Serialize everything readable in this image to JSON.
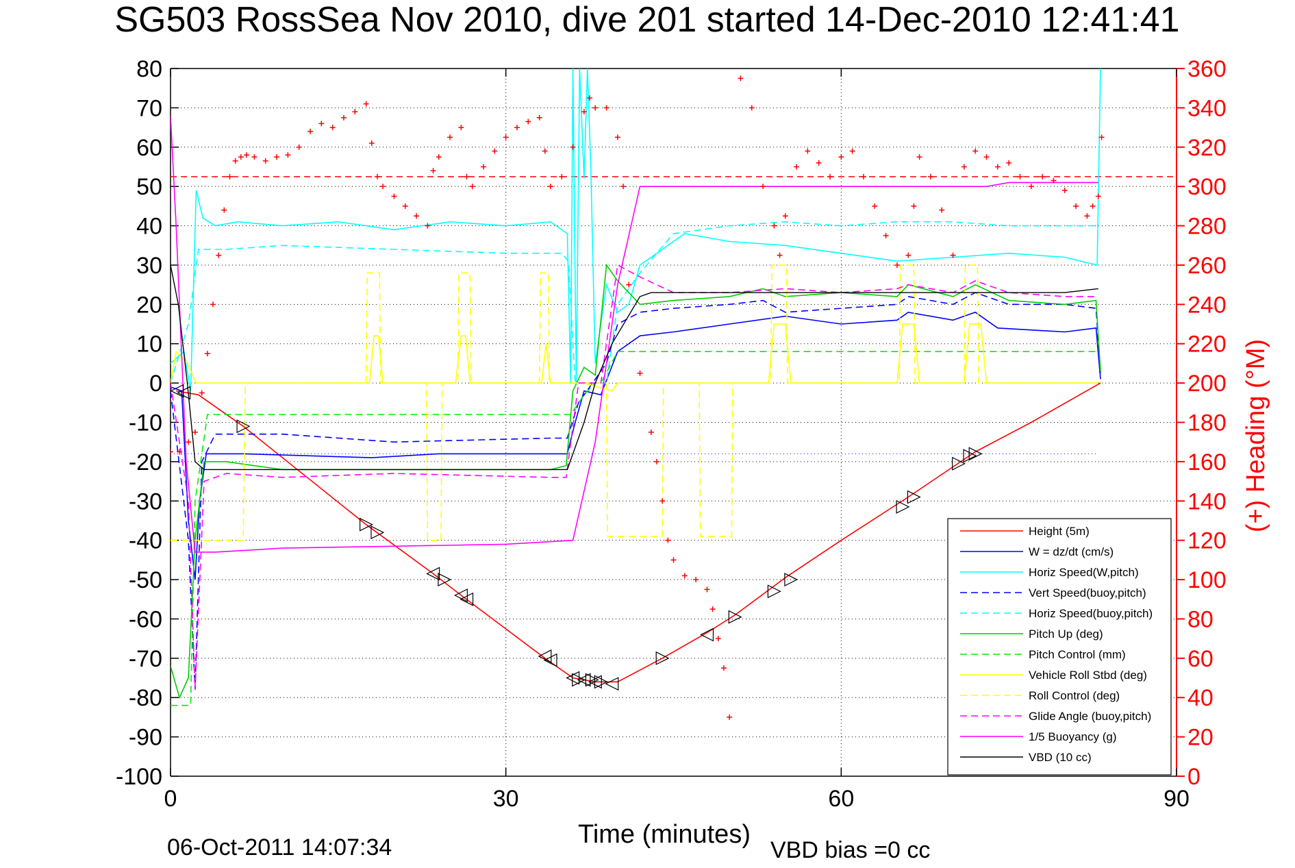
{
  "chart_data": {
    "type": "line",
    "title": "SG503 RossSea Nov 2010, dive 201 started 14-Dec-2010 12:41:41",
    "xlabel": "Time (minutes)",
    "ylabel": "",
    "y2label": "(+) Heading (°M)",
    "footer_left": "06-Oct-2011 14:07:34",
    "footer_right": "VBD bias =0 cc",
    "xlim": [
      0,
      90
    ],
    "ylim": [
      -100,
      80
    ],
    "y2lim": [
      0,
      360
    ],
    "x_ticks": [
      0,
      30,
      60,
      90
    ],
    "y_ticks": [
      80,
      70,
      60,
      50,
      40,
      30,
      20,
      10,
      0,
      -10,
      -20,
      -30,
      -40,
      -50,
      -60,
      -70,
      -80,
      -90,
      -100
    ],
    "y2_ticks": [
      360,
      340,
      320,
      300,
      280,
      260,
      240,
      220,
      200,
      180,
      160,
      140,
      120,
      100,
      80,
      60,
      40,
      20,
      0
    ],
    "grid": true,
    "legend_position": "bottom-right",
    "axis_colors": {
      "left": "#000000",
      "right": "#ff0000"
    },
    "series": [
      {
        "name": "Height (5m)",
        "color": "#ff0000",
        "dash": "solid",
        "x": [
          0.5,
          2.5,
          6.5,
          17.5,
          23.5,
          26,
          33.5,
          36,
          38,
          40,
          44,
          48,
          50.5,
          55,
          60,
          66,
          72,
          77,
          83.2
        ],
        "y": [
          -2,
          -3,
          -11,
          -36,
          -48.5,
          -54,
          -70,
          -75,
          -76,
          -76,
          -70,
          -63.5,
          -59,
          -49.5,
          -40,
          -29,
          -17.5,
          -10,
          0
        ]
      },
      {
        "name": "W = dz/dt (cm/s)",
        "color": "#0000ff",
        "dash": "solid",
        "x": [
          0,
          1,
          1.6,
          2.2,
          2.6,
          3.2,
          6.5,
          18,
          24,
          34,
          35.5,
          36.2,
          37,
          38.5,
          40,
          42,
          45,
          50,
          55,
          60,
          65,
          66,
          70,
          72,
          74,
          80,
          82.8,
          83.2
        ],
        "y": [
          -1,
          -2,
          -35,
          -50,
          -30,
          -18,
          -18,
          -19,
          -18,
          -18,
          -18,
          -10,
          -2,
          -3,
          8,
          12,
          13,
          15,
          17,
          15,
          16,
          18,
          16,
          18,
          14,
          13,
          14,
          1
        ]
      },
      {
        "name": "Horiz Speed(W,pitch)",
        "color": "#00ffff",
        "dash": "solid",
        "x": [
          0,
          1.2,
          1.8,
          2.3,
          2.9,
          4,
          6,
          10,
          15,
          20,
          25,
          30,
          34,
          35.5,
          35.8,
          36,
          36.3,
          36.6,
          37,
          37.3,
          37.6,
          38,
          39,
          40,
          41,
          42,
          44,
          46,
          50,
          55,
          60,
          65,
          70,
          75,
          80,
          82.9,
          83.2
        ],
        "y": [
          5,
          8,
          -2,
          49,
          42,
          40,
          41,
          40,
          41,
          39,
          41,
          40,
          41,
          38,
          0,
          80,
          0,
          80,
          52,
          80,
          55,
          5,
          25,
          18,
          20,
          30,
          34,
          38,
          36,
          35,
          33,
          31,
          32,
          33,
          32,
          30,
          80
        ]
      },
      {
        "name": "Vert Speed(buoy,pitch)",
        "color": "#0000ff",
        "dash": "dashed",
        "x": [
          0,
          1.6,
          2.2,
          2.8,
          4,
          10,
          20,
          34,
          35.5,
          36.5,
          39,
          40,
          42,
          45,
          50,
          53,
          55,
          60,
          65,
          66,
          70,
          72,
          75,
          80,
          82.8,
          83.2
        ],
        "y": [
          -2,
          -40,
          -78,
          -20,
          -13,
          -13,
          -15,
          -14,
          -14,
          -5,
          5,
          15,
          18,
          19,
          20,
          21,
          18,
          19,
          20,
          22,
          20,
          23,
          20,
          20,
          19,
          2
        ]
      },
      {
        "name": "Horiz Speed(buoy,pitch)",
        "color": "#00ffff",
        "dash": "dashed",
        "x": [
          0,
          1.6,
          2.5,
          3.3,
          5,
          10,
          20,
          30,
          35,
          35.6,
          36.2,
          39,
          40,
          42,
          45,
          50,
          55,
          60,
          65,
          70,
          75,
          80,
          83
        ],
        "y": [
          0,
          15,
          34,
          34,
          34,
          35,
          34,
          33,
          33,
          31,
          0,
          0,
          20,
          28,
          38,
          40,
          41,
          40,
          41,
          41,
          40,
          40,
          40
        ]
      },
      {
        "name": "Pitch Up (deg)",
        "color": "#00cc00",
        "dash": "solid",
        "x": [
          0,
          0.8,
          1.6,
          2.2,
          3,
          5,
          10,
          20,
          34,
          35.4,
          36,
          37,
          38,
          39,
          40,
          41,
          42,
          45,
          50,
          53,
          55,
          60,
          65,
          66,
          70,
          72,
          75,
          80,
          82.8,
          83.2
        ],
        "y": [
          -72,
          -80,
          -75,
          -40,
          -20,
          -20,
          -22,
          -22,
          -22,
          -21,
          -2,
          4,
          2,
          30,
          26,
          23,
          20,
          21,
          22,
          24,
          22,
          23,
          22,
          25,
          22,
          25,
          21,
          20,
          21,
          3
        ]
      },
      {
        "name": "Pitch Control (mm)",
        "color": "#00ee00",
        "dash": "dashed",
        "x": [
          0,
          0.8,
          1.8,
          2.2,
          3.3,
          6.5,
          34.8,
          35.8,
          37,
          38,
          38.5,
          40,
          43,
          60,
          83
        ],
        "y": [
          -82,
          -82,
          -82,
          -30,
          -8,
          -8,
          -8,
          -8,
          -3,
          0,
          0,
          8,
          8,
          8,
          8
        ]
      },
      {
        "name": "Vehicle Roll Stbd (deg)",
        "color": "#ffff00",
        "dash": "solid",
        "x": [
          0,
          0.5,
          1.5,
          2.3,
          4,
          6.5,
          17.8,
          18.2,
          18.6,
          19,
          25.5,
          26,
          26.4,
          26.8,
          33.2,
          33.6,
          34,
          35,
          37,
          39.5,
          40,
          44,
          45,
          48,
          50.2,
          53.5,
          54,
          55,
          55.5,
          65,
          65.5,
          66.5,
          67,
          71,
          71.5,
          72.5,
          73,
          80,
          83
        ],
        "y": [
          0,
          8,
          5,
          0,
          0,
          0,
          0,
          12,
          12,
          0,
          0,
          12,
          12,
          0,
          0,
          10,
          0,
          0,
          0,
          -2,
          0,
          0,
          0,
          0,
          0,
          0,
          15,
          15,
          0,
          0,
          15,
          15,
          0,
          0,
          15,
          15,
          0,
          0,
          0
        ]
      },
      {
        "name": "Roll Control (deg)",
        "color": "#ffff00",
        "dash": "dashed",
        "x": [
          0,
          6.5,
          6.7,
          17.5,
          17.6,
          18.7,
          18.8,
          22.9,
          23,
          24.2,
          24.3,
          25.7,
          25.8,
          26.8,
          26.9,
          33,
          33.1,
          33.8,
          33.9,
          35.5,
          35.6,
          39,
          39.1,
          44,
          44.1,
          47.3,
          47.4,
          50.2,
          50.3,
          53.7,
          53.8,
          55.1,
          55.2,
          65.2,
          65.3,
          66.5,
          66.6,
          71,
          71.1,
          72.2,
          72.3,
          83
        ],
        "y": [
          -40,
          -40,
          0,
          0,
          28,
          28,
          0,
          0,
          -40,
          -40,
          0,
          0,
          28,
          28,
          0,
          0,
          28,
          28,
          0,
          0,
          0,
          0,
          -39,
          -39,
          0,
          0,
          -39,
          -39,
          0,
          0,
          30,
          30,
          0,
          0,
          30,
          30,
          0,
          0,
          30,
          30,
          0,
          0
        ]
      },
      {
        "name": "Glide Angle (buoy,pitch)",
        "color": "#ff00ff",
        "dash": "dashed",
        "x": [
          0,
          1.6,
          2.2,
          3,
          5,
          10,
          20,
          34,
          35.4,
          36.5,
          38.5,
          40,
          42,
          45,
          50,
          55,
          60,
          65,
          66,
          70,
          72,
          75,
          80,
          83
        ],
        "y": [
          0,
          -30,
          -78,
          -25,
          -23,
          -24,
          -23,
          -24,
          -24,
          0,
          0,
          30,
          27,
          23,
          23,
          24,
          23,
          24,
          25,
          23,
          26,
          23,
          22,
          22
        ]
      },
      {
        "name": "1/5 Buoyancy (g)",
        "color": "#ff00ff",
        "dash": "solid",
        "x": [
          0,
          0.5,
          1.4,
          2.2,
          4,
          10,
          20,
          30,
          36,
          38,
          40,
          42,
          45,
          50,
          60,
          70,
          73,
          75,
          80,
          83
        ],
        "y": [
          68,
          40,
          -20,
          -43,
          -43,
          -42,
          -41.5,
          -41,
          -40,
          -15,
          25,
          50,
          50,
          50,
          50,
          50,
          50,
          51,
          51,
          51
        ]
      },
      {
        "name": "VBD (10 cc)",
        "color": "#000000",
        "dash": "solid",
        "x": [
          0,
          0.7,
          1.5,
          2.2,
          3,
          10,
          20,
          30,
          35.5,
          37,
          38,
          39.5,
          42,
          43,
          44,
          60,
          70,
          80,
          83
        ],
        "y": [
          30,
          20,
          0,
          -20,
          -22,
          -22,
          -22,
          -22,
          -22,
          -10,
          0,
          10,
          22,
          23,
          23,
          23,
          23,
          23,
          24
        ]
      }
    ],
    "heading_points": {
      "name": "(+) Heading (°M)",
      "color": "#ff0000",
      "marker": "+",
      "axis": "right",
      "x": [
        0,
        0.8,
        1.6,
        2.2,
        2.8,
        3.3,
        3.8,
        4.3,
        4.8,
        5.3,
        5.8,
        6.3,
        6.8,
        7.5,
        8.5,
        9.5,
        10.5,
        11.5,
        12.5,
        13.5,
        14.5,
        15.5,
        16.5,
        17.5,
        18,
        18.5,
        19,
        20,
        21,
        22,
        23,
        23.5,
        24,
        25,
        26,
        26.5,
        27,
        28,
        29,
        30,
        31,
        32,
        33,
        33.5,
        34,
        35,
        36,
        37,
        37.5,
        38,
        39,
        40,
        40.5,
        41,
        42,
        43,
        43.5,
        44,
        44.5,
        45,
        46,
        47,
        48,
        48.5,
        49,
        49.5,
        50,
        51,
        52,
        53,
        54,
        54.5,
        55,
        56,
        57,
        58,
        59,
        60,
        61,
        62,
        63,
        64,
        65,
        66,
        66.5,
        67,
        68,
        69,
        70,
        71,
        72,
        73,
        74,
        75,
        76,
        77,
        78,
        79,
        80,
        81,
        82,
        82.5,
        83,
        83.3
      ],
      "y": [
        165,
        165,
        170,
        175,
        195,
        215,
        240,
        265,
        288,
        305,
        313,
        315,
        316,
        315,
        313,
        315,
        316,
        320,
        328,
        332,
        330,
        335,
        338,
        342,
        322,
        305,
        300,
        295,
        290,
        285,
        280,
        308,
        315,
        325,
        330,
        305,
        300,
        310,
        318,
        325,
        330,
        333,
        335,
        318,
        300,
        305,
        320,
        338,
        345,
        340,
        340,
        325,
        300,
        250,
        205,
        175,
        160,
        140,
        120,
        110,
        102,
        100,
        95,
        85,
        70,
        55,
        30,
        355,
        340,
        300,
        280,
        265,
        285,
        310,
        318,
        312,
        305,
        315,
        318,
        305,
        290,
        275,
        260,
        265,
        290,
        315,
        305,
        288,
        265,
        310,
        318,
        315,
        310,
        312,
        305,
        300,
        305,
        303,
        298,
        290,
        285,
        290,
        295,
        325
      ]
    },
    "reference_line": {
      "axis": "right",
      "value": 305,
      "color": "#ff0000",
      "dash": "dashed"
    },
    "dotted_reference_line": {
      "axis": "left",
      "value": -18,
      "color": "#0000ff",
      "x": [
        0,
        83
      ]
    },
    "triangle_markers": {
      "color": "#000000",
      "x": [
        0.6,
        1.2,
        6.5,
        17.5,
        18.5,
        23.5,
        24.5,
        26,
        26.5,
        33.5,
        34,
        36,
        36.5,
        37,
        37.7,
        38,
        38.5,
        39.5,
        44,
        48,
        50.5,
        54,
        55.5,
        65.5,
        66.5,
        70.5,
        71.5,
        72
      ],
      "y": [
        -2,
        -2.5,
        -11,
        -36,
        -38,
        -48.5,
        -50,
        -54,
        -55,
        -69.5,
        -70.5,
        -75,
        -75.5,
        -75.5,
        -75.5,
        -76,
        -76,
        -76.5,
        -70,
        -64,
        -59.5,
        -53,
        -50,
        -31.5,
        -29,
        -20.5,
        -18.5,
        -18
      ],
      "direction": [
        "left",
        "left",
        "right",
        "right",
        "right",
        "left",
        "right",
        "left",
        "left",
        "left",
        "left",
        "left",
        "right",
        "left",
        "right",
        "left",
        "right",
        "left",
        "right",
        "left",
        "right",
        "right",
        "right",
        "right",
        "right",
        "right",
        "right",
        "right"
      ]
    }
  }
}
